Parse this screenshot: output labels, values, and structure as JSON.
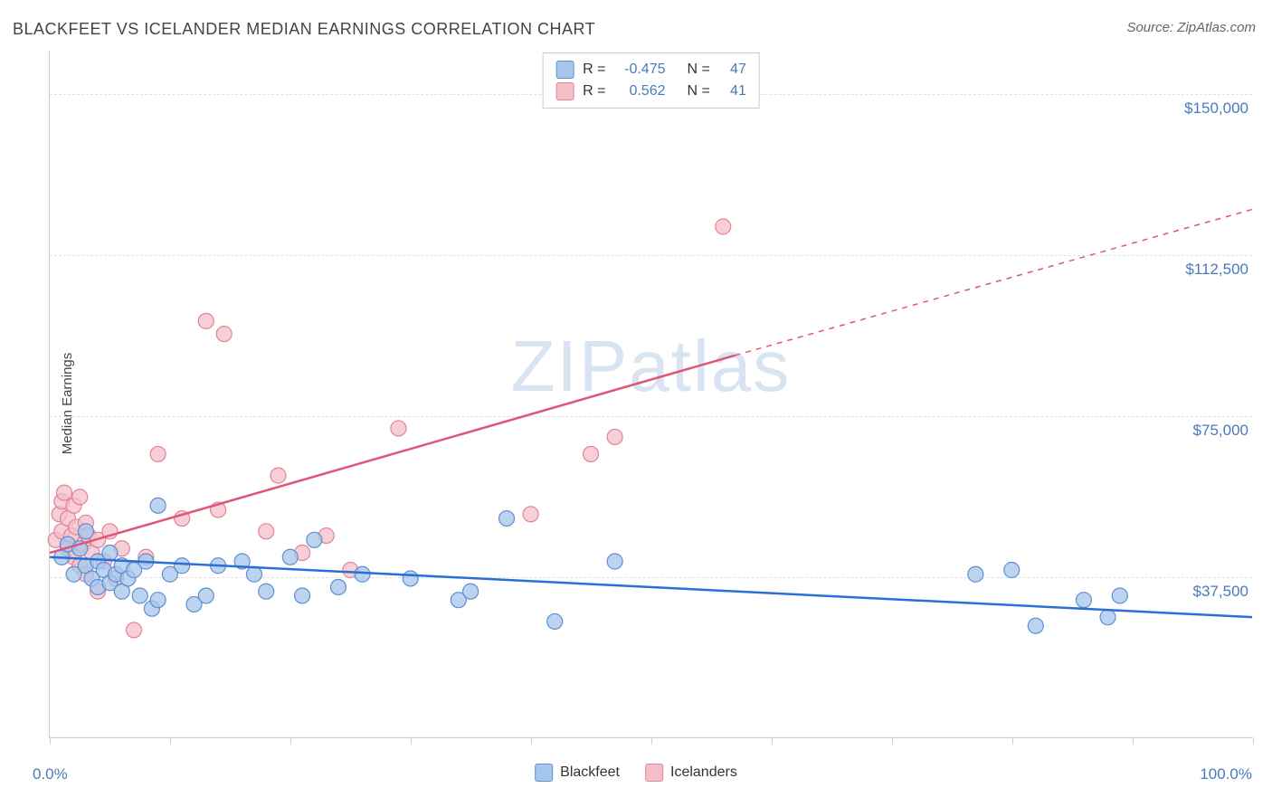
{
  "title": "BLACKFEET VS ICELANDER MEDIAN EARNINGS CORRELATION CHART",
  "source": "Source: ZipAtlas.com",
  "watermark": "ZIPatlas",
  "y_axis_label": "Median Earnings",
  "x_axis": {
    "min_label": "0.0%",
    "max_label": "100.0%",
    "min": 0,
    "max": 100
  },
  "y_axis": {
    "min": 0,
    "max": 160000
  },
  "y_ticks": [
    {
      "value": 37500,
      "label": "$37,500"
    },
    {
      "value": 75000,
      "label": "$75,000"
    },
    {
      "value": 112500,
      "label": "$112,500"
    },
    {
      "value": 150000,
      "label": "$150,000"
    }
  ],
  "x_ticks": [
    0,
    10,
    20,
    30,
    40,
    50,
    60,
    70,
    80,
    90,
    100
  ],
  "stats_legend": [
    {
      "swatch_fill": "#a7c6ec",
      "swatch_border": "#5d8fd0",
      "r_label": "R =",
      "r_value": "-0.475",
      "n_label": "N =",
      "n_value": "47"
    },
    {
      "swatch_fill": "#f5bfc9",
      "swatch_border": "#e08398",
      "r_label": "R =",
      "r_value": "0.562",
      "n_label": "N =",
      "n_value": "41"
    }
  ],
  "bottom_legend": [
    {
      "swatch_fill": "#a7c6ec",
      "swatch_border": "#5d8fd0",
      "label": "Blackfeet"
    },
    {
      "swatch_fill": "#f5bfc9",
      "swatch_border": "#e08398",
      "label": "Icelanders"
    }
  ],
  "series": {
    "blackfeet": {
      "marker_fill": "#a7c6ec",
      "marker_stroke": "#5d8fd0",
      "marker_opacity": 0.75,
      "marker_radius": 8.5,
      "line_color": "#2a6fd6",
      "line_width": 2.5,
      "trend": {
        "x1": 0,
        "y1": 42000,
        "x2": 100,
        "y2": 28000
      },
      "points": [
        {
          "x": 1,
          "y": 42000
        },
        {
          "x": 1.5,
          "y": 45000
        },
        {
          "x": 2,
          "y": 38000
        },
        {
          "x": 2.5,
          "y": 44000
        },
        {
          "x": 3,
          "y": 40000
        },
        {
          "x": 3,
          "y": 48000
        },
        {
          "x": 3.5,
          "y": 37000
        },
        {
          "x": 4,
          "y": 41000
        },
        {
          "x": 4,
          "y": 35000
        },
        {
          "x": 4.5,
          "y": 39000
        },
        {
          "x": 5,
          "y": 43000
        },
        {
          "x": 5,
          "y": 36000
        },
        {
          "x": 5.5,
          "y": 38000
        },
        {
          "x": 6,
          "y": 40000
        },
        {
          "x": 6,
          "y": 34000
        },
        {
          "x": 6.5,
          "y": 37000
        },
        {
          "x": 7,
          "y": 39000
        },
        {
          "x": 7.5,
          "y": 33000
        },
        {
          "x": 8,
          "y": 41000
        },
        {
          "x": 8.5,
          "y": 30000
        },
        {
          "x": 9,
          "y": 54000
        },
        {
          "x": 9,
          "y": 32000
        },
        {
          "x": 10,
          "y": 38000
        },
        {
          "x": 11,
          "y": 40000
        },
        {
          "x": 12,
          "y": 31000
        },
        {
          "x": 13,
          "y": 33000
        },
        {
          "x": 14,
          "y": 40000
        },
        {
          "x": 16,
          "y": 41000
        },
        {
          "x": 17,
          "y": 38000
        },
        {
          "x": 18,
          "y": 34000
        },
        {
          "x": 20,
          "y": 42000
        },
        {
          "x": 21,
          "y": 33000
        },
        {
          "x": 22,
          "y": 46000
        },
        {
          "x": 24,
          "y": 35000
        },
        {
          "x": 26,
          "y": 38000
        },
        {
          "x": 30,
          "y": 37000
        },
        {
          "x": 34,
          "y": 32000
        },
        {
          "x": 35,
          "y": 34000
        },
        {
          "x": 38,
          "y": 51000
        },
        {
          "x": 42,
          "y": 27000
        },
        {
          "x": 47,
          "y": 41000
        },
        {
          "x": 77,
          "y": 38000
        },
        {
          "x": 80,
          "y": 39000
        },
        {
          "x": 82,
          "y": 26000
        },
        {
          "x": 86,
          "y": 32000
        },
        {
          "x": 88,
          "y": 28000
        },
        {
          "x": 89,
          "y": 33000
        }
      ]
    },
    "icelanders": {
      "marker_fill": "#f5bfc9",
      "marker_stroke": "#e08398",
      "marker_opacity": 0.75,
      "marker_radius": 8.5,
      "line_color": "#e05575",
      "line_width": 2.5,
      "trend_solid": {
        "x1": 0,
        "y1": 43000,
        "x2": 57,
        "y2": 89000
      },
      "trend_dash": {
        "x1": 57,
        "y1": 89000,
        "x2": 100,
        "y2": 123000
      },
      "points": [
        {
          "x": 0.5,
          "y": 46000
        },
        {
          "x": 0.8,
          "y": 52000
        },
        {
          "x": 1,
          "y": 55000
        },
        {
          "x": 1,
          "y": 48000
        },
        {
          "x": 1.2,
          "y": 57000
        },
        {
          "x": 1.5,
          "y": 44000
        },
        {
          "x": 1.5,
          "y": 51000
        },
        {
          "x": 1.8,
          "y": 47000
        },
        {
          "x": 2,
          "y": 54000
        },
        {
          "x": 2,
          "y": 42000
        },
        {
          "x": 2.2,
          "y": 49000
        },
        {
          "x": 2.5,
          "y": 56000
        },
        {
          "x": 2.5,
          "y": 40000
        },
        {
          "x": 2.8,
          "y": 45000
        },
        {
          "x": 3,
          "y": 50000
        },
        {
          "x": 3,
          "y": 38000
        },
        {
          "x": 3.2,
          "y": 47000
        },
        {
          "x": 3.5,
          "y": 43000
        },
        {
          "x": 4,
          "y": 46000
        },
        {
          "x": 4,
          "y": 34000
        },
        {
          "x": 4.5,
          "y": 41000
        },
        {
          "x": 5,
          "y": 48000
        },
        {
          "x": 5.5,
          "y": 37000
        },
        {
          "x": 6,
          "y": 44000
        },
        {
          "x": 7,
          "y": 25000
        },
        {
          "x": 8,
          "y": 42000
        },
        {
          "x": 9,
          "y": 66000
        },
        {
          "x": 11,
          "y": 51000
        },
        {
          "x": 13,
          "y": 97000
        },
        {
          "x": 14,
          "y": 53000
        },
        {
          "x": 14.5,
          "y": 94000
        },
        {
          "x": 18,
          "y": 48000
        },
        {
          "x": 19,
          "y": 61000
        },
        {
          "x": 21,
          "y": 43000
        },
        {
          "x": 23,
          "y": 47000
        },
        {
          "x": 25,
          "y": 39000
        },
        {
          "x": 29,
          "y": 72000
        },
        {
          "x": 40,
          "y": 52000
        },
        {
          "x": 45,
          "y": 66000
        },
        {
          "x": 47,
          "y": 70000
        },
        {
          "x": 56,
          "y": 119000
        }
      ]
    }
  },
  "colors": {
    "axis": "#cccccc",
    "grid": "#e0e0e0",
    "value_text": "#4a7abc",
    "title_text": "#444444",
    "source_text": "#666666",
    "watermark": "#d8e4f2",
    "background": "#ffffff"
  }
}
